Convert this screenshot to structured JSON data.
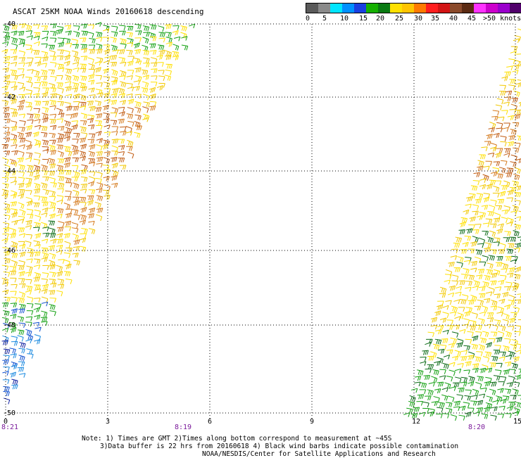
{
  "title": "ASCAT 25KM NOAA Winds 20160618 descending",
  "legend": {
    "colors": [
      "#5a5a5a",
      "#8a8a8a",
      "#00e5ff",
      "#0090ff",
      "#1a3fe0",
      "#15b000",
      "#0a7a12",
      "#ffe000",
      "#ffc400",
      "#ff7a00",
      "#ff1e1e",
      "#d21414",
      "#8a4a2a",
      "#5a2a12",
      "#ff33ff",
      "#cc00cc",
      "#9a00cc",
      "#50006a"
    ],
    "labels": [
      "0",
      "5",
      "10",
      "15",
      "20",
      "25",
      "30",
      "35",
      "40",
      "45",
      ">50 knots"
    ]
  },
  "axes": {
    "x_ticks": [
      "0",
      "3",
      "6",
      "9",
      "12",
      "15"
    ],
    "y_ticks": [
      "-40",
      "-42",
      "-44",
      "-46",
      "-48",
      "-50"
    ]
  },
  "time_labels": [
    "8:21",
    "8:19",
    "8:20"
  ],
  "notes": {
    "line1": "Note: 1) Times are GMT 2)Times along bottom correspond to measurement at ~45S",
    "line2": "3)Data buffer is 22 hrs from 20160618 4) Black wind barbs indicate possible contamination",
    "line3": "NOAA/NESDIS/Center for Satellite Applications and Research"
  }
}
